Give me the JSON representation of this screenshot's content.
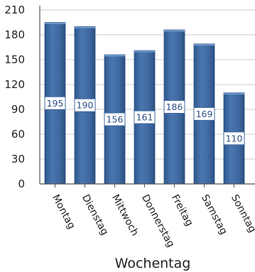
{
  "chart_data": {
    "type": "bar",
    "categories": [
      "Montag",
      "Dienstag",
      "Mittwoch",
      "Donnerstag",
      "Freitag",
      "Samstag",
      "Sonntag"
    ],
    "values": [
      195,
      190,
      156,
      161,
      186,
      169,
      110
    ],
    "data_labels": [
      "195",
      "190",
      "156",
      "161",
      "186",
      "169",
      "110"
    ],
    "title": "",
    "xlabel": "Wochentag",
    "ylabel": "",
    "ylim": [
      0,
      210
    ],
    "yticks": [
      0,
      30,
      60,
      90,
      120,
      150,
      180,
      210
    ],
    "grid": true,
    "colors": {
      "bar": "#3d679e",
      "bar_light": "#5a86bf",
      "bar_dark": "#2b4f80",
      "grid": "#d6d6d6",
      "axis": "#555555"
    }
  }
}
